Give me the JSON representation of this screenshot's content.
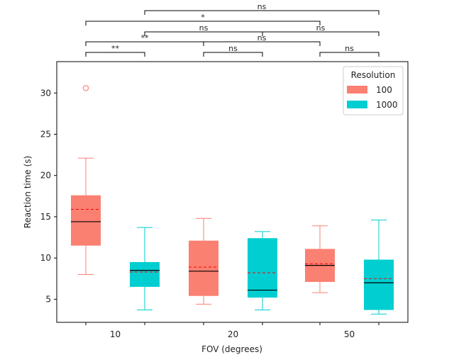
{
  "chart_data": {
    "type": "boxplot",
    "xlabel": "FOV (degrees)",
    "ylabel": "Reaction time (s)",
    "ylim": [
      2.2,
      33.8
    ],
    "yticks": [
      5,
      10,
      15,
      20,
      25,
      30
    ],
    "categories": [
      "10",
      "20",
      "50"
    ],
    "legend": {
      "title": "Resolution",
      "position": "top-right",
      "entries": [
        {
          "label": "100",
          "color": "#fa8072"
        },
        {
          "label": "1000",
          "color": "#00ced1"
        }
      ]
    },
    "boxes": [
      {
        "fov": "10",
        "resolution": "100",
        "color": "#fa8072",
        "whisker_low": 8.0,
        "q1": 11.5,
        "median": 14.4,
        "mean": 15.9,
        "q3": 17.6,
        "whisker_high": 22.1,
        "outliers": [
          30.6
        ]
      },
      {
        "fov": "10",
        "resolution": "1000",
        "color": "#00ced1",
        "whisker_low": 3.7,
        "q1": 6.5,
        "median": 8.5,
        "mean": 8.3,
        "q3": 9.5,
        "whisker_high": 13.7,
        "outliers": []
      },
      {
        "fov": "20",
        "resolution": "100",
        "color": "#fa8072",
        "whisker_low": 4.4,
        "q1": 5.4,
        "median": 8.4,
        "mean": 8.9,
        "q3": 12.1,
        "whisker_high": 14.8,
        "outliers": []
      },
      {
        "fov": "20",
        "resolution": "1000",
        "color": "#00ced1",
        "whisker_low": 3.7,
        "q1": 5.2,
        "median": 6.1,
        "mean": 8.2,
        "q3": 12.4,
        "whisker_high": 13.2,
        "outliers": []
      },
      {
        "fov": "50",
        "resolution": "100",
        "color": "#fa8072",
        "whisker_low": 5.8,
        "q1": 7.1,
        "median": 9.1,
        "mean": 9.3,
        "q3": 11.1,
        "whisker_high": 13.9,
        "outliers": []
      },
      {
        "fov": "50",
        "resolution": "1000",
        "color": "#00ced1",
        "whisker_low": 3.2,
        "q1": 3.7,
        "median": 7.0,
        "mean": 7.5,
        "q3": 9.8,
        "whisker_high": 14.6,
        "outliers": []
      }
    ],
    "significance": [
      {
        "from": 0,
        "to": 1,
        "label": "**",
        "level": 0
      },
      {
        "from": 2,
        "to": 3,
        "label": "ns",
        "level": 0
      },
      {
        "from": 4,
        "to": 5,
        "label": "ns",
        "level": 0
      },
      {
        "from": 0,
        "to": 2,
        "label": "**",
        "level": 1
      },
      {
        "from": 2,
        "to": 4,
        "label": "ns",
        "level": 1
      },
      {
        "from": 1,
        "to": 3,
        "label": "ns",
        "level": 2
      },
      {
        "from": 3,
        "to": 5,
        "label": "ns",
        "level": 2
      },
      {
        "from": 0,
        "to": 4,
        "label": "*",
        "level": 3
      },
      {
        "from": 1,
        "to": 5,
        "label": "ns",
        "level": 4
      }
    ]
  }
}
